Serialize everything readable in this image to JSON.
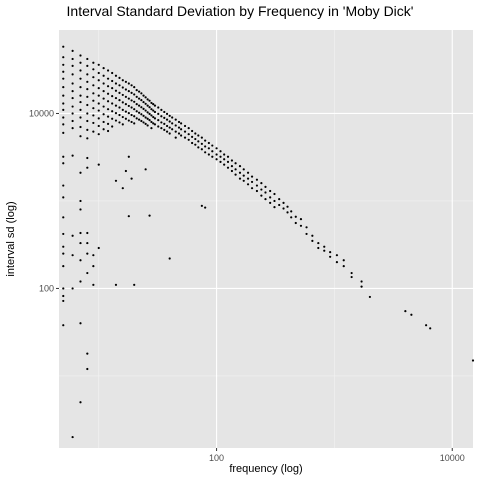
{
  "chart_data": {
    "type": "scatter",
    "title": "Interval Standard Deviation by Frequency in 'Moby Dick'",
    "xlabel": "frequency (log)",
    "ylabel": "interval sd (log)",
    "x_scale": "log10",
    "y_scale": "log10",
    "xlim": [
      4.6,
      15000
    ],
    "ylim": [
      1.5,
      90000
    ],
    "x_ticks": [
      {
        "value": 100,
        "label": "100"
      },
      {
        "value": 10000,
        "label": "10000"
      }
    ],
    "y_ticks": [
      {
        "value": 100,
        "label": "100"
      },
      {
        "value": 10000,
        "label": "10000"
      }
    ],
    "grid": true,
    "background": "#e5e5e5",
    "grid_major_color": "#ffffff",
    "point_color": "#000000",
    "points_note_none": "",
    "points": [
      [
        5,
        58000
      ],
      [
        5,
        44000
      ],
      [
        5,
        36000
      ],
      [
        5,
        30000
      ],
      [
        5,
        25000
      ],
      [
        5,
        20000
      ],
      [
        5,
        16000
      ],
      [
        5,
        13000
      ],
      [
        5,
        11000
      ],
      [
        5,
        9000
      ],
      [
        5,
        7500
      ],
      [
        5,
        6000
      ],
      [
        5,
        3200
      ],
      [
        5,
        2700
      ],
      [
        5,
        1500
      ],
      [
        5,
        1100
      ],
      [
        5,
        650
      ],
      [
        5,
        420
      ],
      [
        5,
        300
      ],
      [
        5,
        250
      ],
      [
        5,
        180
      ],
      [
        5,
        100
      ],
      [
        5,
        82
      ],
      [
        5,
        72
      ],
      [
        5,
        38
      ],
      [
        6,
        52000
      ],
      [
        6,
        42000
      ],
      [
        6,
        35000
      ],
      [
        6,
        28000
      ],
      [
        6,
        22000
      ],
      [
        6,
        18000
      ],
      [
        6,
        15000
      ],
      [
        6,
        12000
      ],
      [
        6,
        10000
      ],
      [
        6,
        8200
      ],
      [
        6,
        6800
      ],
      [
        6,
        3300
      ],
      [
        6,
        400
      ],
      [
        6,
        240
      ],
      [
        6,
        100
      ],
      [
        6,
        2
      ],
      [
        7,
        46000
      ],
      [
        7,
        38000
      ],
      [
        7,
        31000
      ],
      [
        7,
        25000
      ],
      [
        7,
        20000
      ],
      [
        7,
        16000
      ],
      [
        7,
        13500
      ],
      [
        7,
        11000
      ],
      [
        7,
        9000
      ],
      [
        7,
        7000
      ],
      [
        7,
        5500
      ],
      [
        7,
        2100
      ],
      [
        7,
        1000
      ],
      [
        7,
        800
      ],
      [
        7,
        430
      ],
      [
        7,
        330
      ],
      [
        7,
        210
      ],
      [
        7,
        120
      ],
      [
        7,
        40
      ],
      [
        7,
        5
      ],
      [
        8,
        42000
      ],
      [
        8,
        35000
      ],
      [
        8,
        28000
      ],
      [
        8,
        23000
      ],
      [
        8,
        19000
      ],
      [
        8,
        15500
      ],
      [
        8,
        12500
      ],
      [
        8,
        10000
      ],
      [
        8,
        8200
      ],
      [
        8,
        6500
      ],
      [
        8,
        5200
      ],
      [
        8,
        3100
      ],
      [
        8,
        2400
      ],
      [
        8,
        430
      ],
      [
        8,
        330
      ],
      [
        8,
        250
      ],
      [
        8,
        150
      ],
      [
        8,
        18
      ],
      [
        8,
        12
      ],
      [
        9,
        38000
      ],
      [
        9,
        32000
      ],
      [
        9,
        26000
      ],
      [
        9,
        21000
      ],
      [
        9,
        17000
      ],
      [
        9,
        14000
      ],
      [
        9,
        11500
      ],
      [
        9,
        9500
      ],
      [
        9,
        7800
      ],
      [
        9,
        6200
      ],
      [
        9,
        240
      ],
      [
        9,
        180
      ],
      [
        9,
        110
      ],
      [
        10,
        36000
      ],
      [
        10,
        29000
      ],
      [
        10,
        24000
      ],
      [
        10,
        19500
      ],
      [
        10,
        16000
      ],
      [
        10,
        13000
      ],
      [
        10,
        10800
      ],
      [
        10,
        8800
      ],
      [
        10,
        7200
      ],
      [
        10,
        5800
      ],
      [
        10,
        2600
      ],
      [
        10,
        290
      ],
      [
        11,
        33000
      ],
      [
        11,
        27000
      ],
      [
        11,
        22000
      ],
      [
        11,
        18000
      ],
      [
        11,
        14800
      ],
      [
        11,
        12000
      ],
      [
        11,
        9800
      ],
      [
        11,
        8000
      ],
      [
        11,
        6600
      ],
      [
        12,
        31000
      ],
      [
        12,
        25000
      ],
      [
        12,
        20500
      ],
      [
        12,
        16800
      ],
      [
        12,
        13800
      ],
      [
        12,
        11200
      ],
      [
        12,
        9200
      ],
      [
        12,
        7600
      ],
      [
        12,
        6300
      ],
      [
        13,
        29000
      ],
      [
        13,
        23500
      ],
      [
        13,
        19500
      ],
      [
        13,
        15800
      ],
      [
        13,
        13000
      ],
      [
        13,
        10600
      ],
      [
        13,
        8700
      ],
      [
        13,
        7100
      ],
      [
        14,
        27000
      ],
      [
        14,
        22000
      ],
      [
        14,
        18200
      ],
      [
        14,
        15000
      ],
      [
        14,
        12300
      ],
      [
        14,
        10100
      ],
      [
        14,
        8300
      ],
      [
        14,
        1700
      ],
      [
        14,
        110
      ],
      [
        15,
        25500
      ],
      [
        15,
        21000
      ],
      [
        15,
        17200
      ],
      [
        15,
        14200
      ],
      [
        15,
        11700
      ],
      [
        15,
        9600
      ],
      [
        15,
        7900
      ],
      [
        16,
        24000
      ],
      [
        16,
        19800
      ],
      [
        16,
        16300
      ],
      [
        16,
        13400
      ],
      [
        16,
        11000
      ],
      [
        16,
        9100
      ],
      [
        16,
        7500
      ],
      [
        16,
        1400
      ],
      [
        17,
        23000
      ],
      [
        17,
        18800
      ],
      [
        17,
        15500
      ],
      [
        17,
        12800
      ],
      [
        17,
        10500
      ],
      [
        17,
        8700
      ],
      [
        17,
        2200
      ],
      [
        18,
        22000
      ],
      [
        18,
        18000
      ],
      [
        18,
        14800
      ],
      [
        18,
        12200
      ],
      [
        18,
        10100
      ],
      [
        18,
        8300
      ],
      [
        18,
        3200
      ],
      [
        18,
        670
      ],
      [
        19,
        21000
      ],
      [
        19,
        17200
      ],
      [
        19,
        14100
      ],
      [
        19,
        11700
      ],
      [
        19,
        9600
      ],
      [
        19,
        8000
      ],
      [
        19,
        1800
      ],
      [
        20,
        20000
      ],
      [
        20,
        16500
      ],
      [
        20,
        13600
      ],
      [
        20,
        11200
      ],
      [
        20,
        9300
      ],
      [
        20,
        7700
      ],
      [
        20,
        110
      ],
      [
        21,
        18500
      ],
      [
        21,
        15500
      ],
      [
        21,
        12800
      ],
      [
        21,
        10600
      ],
      [
        21,
        8800
      ],
      [
        22,
        17800
      ],
      [
        22,
        14800
      ],
      [
        22,
        12300
      ],
      [
        22,
        10200
      ],
      [
        22,
        8500
      ],
      [
        23,
        17000
      ],
      [
        23,
        14200
      ],
      [
        23,
        11800
      ],
      [
        23,
        9800
      ],
      [
        23,
        8200
      ],
      [
        24,
        16000
      ],
      [
        24,
        13500
      ],
      [
        24,
        11300
      ],
      [
        24,
        9400
      ],
      [
        24,
        7900
      ],
      [
        25,
        15300
      ],
      [
        25,
        12900
      ],
      [
        25,
        10800
      ],
      [
        25,
        9000
      ],
      [
        25,
        7600
      ],
      [
        25,
        2300
      ],
      [
        26,
        14500
      ],
      [
        26,
        12300
      ],
      [
        26,
        10300
      ],
      [
        26,
        8700
      ],
      [
        26,
        7300
      ],
      [
        27,
        14000
      ],
      [
        27,
        11800
      ],
      [
        27,
        9900
      ],
      [
        27,
        8400
      ],
      [
        27,
        680
      ],
      [
        28,
        13200
      ],
      [
        28,
        11200
      ],
      [
        28,
        9500
      ],
      [
        28,
        8000
      ],
      [
        28,
        6800
      ],
      [
        29,
        12800
      ],
      [
        29,
        10800
      ],
      [
        29,
        9100
      ],
      [
        29,
        7700
      ],
      [
        30,
        12300
      ],
      [
        30,
        10400
      ],
      [
        30,
        8800
      ],
      [
        30,
        7500
      ],
      [
        32,
        11700
      ],
      [
        32,
        9900
      ],
      [
        32,
        8400
      ],
      [
        32,
        7100
      ],
      [
        34,
        11000
      ],
      [
        34,
        9300
      ],
      [
        34,
        7900
      ],
      [
        34,
        6800
      ],
      [
        36,
        10400
      ],
      [
        36,
        8900
      ],
      [
        36,
        7600
      ],
      [
        36,
        6500
      ],
      [
        38,
        9900
      ],
      [
        38,
        8500
      ],
      [
        38,
        7200
      ],
      [
        38,
        6200
      ],
      [
        40,
        9400
      ],
      [
        40,
        8100
      ],
      [
        40,
        6900
      ],
      [
        40,
        5900
      ],
      [
        40,
        220
      ],
      [
        42,
        9000
      ],
      [
        42,
        7700
      ],
      [
        42,
        6600
      ],
      [
        45,
        8500
      ],
      [
        45,
        7300
      ],
      [
        45,
        6200
      ],
      [
        45,
        5300
      ],
      [
        48,
        8000
      ],
      [
        48,
        6900
      ],
      [
        48,
        5900
      ],
      [
        50,
        7700
      ],
      [
        50,
        6600
      ],
      [
        50,
        5600
      ],
      [
        54,
        7200
      ],
      [
        54,
        6200
      ],
      [
        54,
        5300
      ],
      [
        58,
        6800
      ],
      [
        58,
        5800
      ],
      [
        58,
        5000
      ],
      [
        62,
        6300
      ],
      [
        62,
        5400
      ],
      [
        62,
        4600
      ],
      [
        66,
        5900
      ],
      [
        66,
        5100
      ],
      [
        66,
        4400
      ],
      [
        70,
        5600
      ],
      [
        70,
        4800
      ],
      [
        70,
        4100
      ],
      [
        75,
        5300
      ],
      [
        75,
        4500
      ],
      [
        75,
        3900
      ],
      [
        80,
        4900
      ],
      [
        80,
        4200
      ],
      [
        80,
        3600
      ],
      [
        75,
        880
      ],
      [
        80,
        840
      ],
      [
        86,
        4600
      ],
      [
        86,
        4000
      ],
      [
        86,
        3400
      ],
      [
        92,
        4300
      ],
      [
        92,
        3700
      ],
      [
        92,
        3200
      ],
      [
        100,
        4000
      ],
      [
        100,
        3400
      ],
      [
        100,
        3000
      ],
      [
        108,
        3700
      ],
      [
        108,
        3200
      ],
      [
        108,
        2800
      ],
      [
        116,
        3400
      ],
      [
        116,
        3000
      ],
      [
        116,
        2600
      ],
      [
        125,
        3200
      ],
      [
        125,
        2800
      ],
      [
        125,
        2400
      ],
      [
        135,
        2900
      ],
      [
        135,
        2500
      ],
      [
        135,
        2200
      ],
      [
        145,
        2700
      ],
      [
        145,
        2300
      ],
      [
        145,
        2000
      ],
      [
        158,
        2500
      ],
      [
        158,
        2100
      ],
      [
        158,
        1800
      ],
      [
        170,
        2300
      ],
      [
        170,
        1950
      ],
      [
        170,
        1700
      ],
      [
        185,
        2100
      ],
      [
        185,
        1800
      ],
      [
        185,
        1550
      ],
      [
        200,
        1900
      ],
      [
        200,
        1650
      ],
      [
        200,
        1400
      ],
      [
        220,
        1750
      ],
      [
        220,
        1500
      ],
      [
        220,
        1300
      ],
      [
        240,
        1600
      ],
      [
        240,
        1350
      ],
      [
        240,
        1150
      ],
      [
        260,
        1450
      ],
      [
        260,
        1250
      ],
      [
        260,
        1050
      ],
      [
        285,
        1300
      ],
      [
        285,
        1100
      ],
      [
        285,
        950
      ],
      [
        310,
        1200
      ],
      [
        310,
        1000
      ],
      [
        310,
        850
      ],
      [
        340,
        1050
      ],
      [
        340,
        900
      ],
      [
        370,
        950
      ],
      [
        370,
        820
      ],
      [
        400,
        860
      ],
      [
        400,
        740
      ],
      [
        430,
        760
      ],
      [
        430,
        650
      ],
      [
        470,
        660
      ],
      [
        470,
        560
      ],
      [
        520,
        620
      ],
      [
        520,
        520
      ],
      [
        580,
        500
      ],
      [
        580,
        420
      ],
      [
        650,
        400
      ],
      [
        650,
        350
      ],
      [
        730,
        330
      ],
      [
        730,
        290
      ],
      [
        820,
        300
      ],
      [
        820,
        270
      ],
      [
        920,
        260
      ],
      [
        920,
        230
      ],
      [
        1050,
        240
      ],
      [
        1050,
        200
      ],
      [
        1200,
        210
      ],
      [
        1200,
        180
      ],
      [
        1400,
        150
      ],
      [
        1400,
        135
      ],
      [
        1700,
        120
      ],
      [
        1700,
        105
      ],
      [
        2000,
        80
      ],
      [
        4000,
        55
      ],
      [
        4500,
        50
      ],
      [
        6000,
        38
      ],
      [
        6500,
        35
      ],
      [
        15000,
        15
      ]
    ]
  }
}
